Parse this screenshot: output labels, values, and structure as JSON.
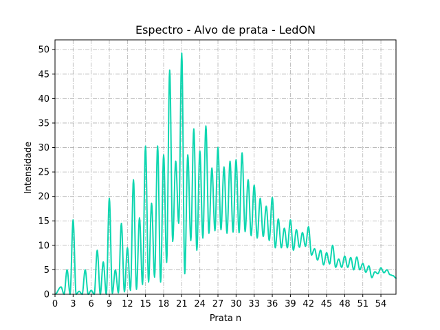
{
  "chart_data": {
    "type": "line",
    "title": "Espectro - Alvo de prata - LedON",
    "xlabel": "Prata n",
    "ylabel": "Intensidade",
    "xlim": [
      0,
      56.5
    ],
    "ylim": [
      0,
      52
    ],
    "xticks": [
      0,
      3,
      6,
      9,
      12,
      15,
      18,
      21,
      24,
      27,
      30,
      33,
      36,
      39,
      42,
      45,
      48,
      51,
      54
    ],
    "yticks": [
      0,
      5,
      10,
      15,
      20,
      25,
      30,
      35,
      40,
      45,
      50
    ],
    "grid": true,
    "grid_style": "dashdot",
    "line_color": "#0fd6b0",
    "grid_color": "#b0b0b0",
    "peaks": [
      {
        "x": 1.0,
        "y": 1.5
      },
      {
        "x": 2.0,
        "y": 5.0
      },
      {
        "x": 3.0,
        "y": 15.2
      },
      {
        "x": 4.0,
        "y": 0.6
      },
      {
        "x": 5.0,
        "y": 5.0
      },
      {
        "x": 6.0,
        "y": 0.8
      },
      {
        "x": 7.0,
        "y": 9.0
      },
      {
        "x": 8.0,
        "y": 6.6
      },
      {
        "x": 9.0,
        "y": 19.6
      },
      {
        "x": 10.0,
        "y": 5.0
      },
      {
        "x": 11.0,
        "y": 14.5
      },
      {
        "x": 12.0,
        "y": 9.5
      },
      {
        "x": 13.0,
        "y": 23.4
      },
      {
        "x": 14.0,
        "y": 15.6
      },
      {
        "x": 15.0,
        "y": 30.3
      },
      {
        "x": 16.0,
        "y": 18.6
      },
      {
        "x": 17.0,
        "y": 30.3
      },
      {
        "x": 18.0,
        "y": 28.5
      },
      {
        "x": 19.0,
        "y": 45.8
      },
      {
        "x": 20.0,
        "y": 27.2
      },
      {
        "x": 21.0,
        "y": 49.3
      },
      {
        "x": 22.0,
        "y": 28.5
      },
      {
        "x": 23.0,
        "y": 33.8
      },
      {
        "x": 24.0,
        "y": 29.3
      },
      {
        "x": 25.0,
        "y": 34.4
      },
      {
        "x": 26.0,
        "y": 25.8
      },
      {
        "x": 27.0,
        "y": 30.0
      },
      {
        "x": 28.0,
        "y": 26.0
      },
      {
        "x": 29.0,
        "y": 27.2
      },
      {
        "x": 30.0,
        "y": 27.5
      },
      {
        "x": 31.0,
        "y": 28.9
      },
      {
        "x": 32.0,
        "y": 23.4
      },
      {
        "x": 33.0,
        "y": 22.3
      },
      {
        "x": 34.0,
        "y": 19.6
      },
      {
        "x": 35.0,
        "y": 18.0
      },
      {
        "x": 36.0,
        "y": 19.8
      },
      {
        "x": 37.0,
        "y": 15.4
      },
      {
        "x": 38.0,
        "y": 13.5
      },
      {
        "x": 39.0,
        "y": 15.2
      },
      {
        "x": 40.0,
        "y": 13.2
      },
      {
        "x": 41.0,
        "y": 12.6
      },
      {
        "x": 42.0,
        "y": 13.8
      },
      {
        "x": 43.0,
        "y": 9.3
      },
      {
        "x": 44.0,
        "y": 9.0
      },
      {
        "x": 45.0,
        "y": 8.5
      },
      {
        "x": 46.0,
        "y": 10.0
      },
      {
        "x": 47.0,
        "y": 7.2
      },
      {
        "x": 48.0,
        "y": 7.8
      },
      {
        "x": 49.0,
        "y": 7.5
      },
      {
        "x": 50.0,
        "y": 7.6
      },
      {
        "x": 51.0,
        "y": 6.3
      },
      {
        "x": 52.0,
        "y": 5.8
      },
      {
        "x": 53.0,
        "y": 4.6
      },
      {
        "x": 54.0,
        "y": 5.4
      },
      {
        "x": 55.0,
        "y": 5.0
      },
      {
        "x": 56.0,
        "y": 3.8
      }
    ],
    "troughs": [
      {
        "x": 0.0,
        "y": 0.0
      },
      {
        "x": 1.5,
        "y": 0.0
      },
      {
        "x": 2.5,
        "y": 0.0
      },
      {
        "x": 3.5,
        "y": 0.0
      },
      {
        "x": 4.5,
        "y": 0.0
      },
      {
        "x": 5.5,
        "y": 0.0
      },
      {
        "x": 6.5,
        "y": 0.0
      },
      {
        "x": 7.5,
        "y": 0.0
      },
      {
        "x": 8.5,
        "y": 0.0
      },
      {
        "x": 9.5,
        "y": 0.2
      },
      {
        "x": 10.5,
        "y": 0.3
      },
      {
        "x": 11.5,
        "y": 0.5
      },
      {
        "x": 12.5,
        "y": 0.8
      },
      {
        "x": 13.5,
        "y": 1.0
      },
      {
        "x": 14.5,
        "y": 2.0
      },
      {
        "x": 15.5,
        "y": 2.5
      },
      {
        "x": 16.5,
        "y": 3.5
      },
      {
        "x": 17.5,
        "y": 2.5
      },
      {
        "x": 18.5,
        "y": 6.5
      },
      {
        "x": 19.5,
        "y": 10.8
      },
      {
        "x": 20.5,
        "y": 14.5
      },
      {
        "x": 21.5,
        "y": 4.2
      },
      {
        "x": 22.5,
        "y": 11.0
      },
      {
        "x": 23.5,
        "y": 9.0
      },
      {
        "x": 24.5,
        "y": 11.5
      },
      {
        "x": 25.5,
        "y": 12.5
      },
      {
        "x": 26.5,
        "y": 13.0
      },
      {
        "x": 27.5,
        "y": 13.2
      },
      {
        "x": 28.5,
        "y": 12.5
      },
      {
        "x": 29.5,
        "y": 12.7
      },
      {
        "x": 30.5,
        "y": 12.6
      },
      {
        "x": 31.5,
        "y": 12.8
      },
      {
        "x": 32.5,
        "y": 12.0
      },
      {
        "x": 33.5,
        "y": 11.5
      },
      {
        "x": 34.5,
        "y": 11.8
      },
      {
        "x": 35.5,
        "y": 11.0
      },
      {
        "x": 36.5,
        "y": 9.5
      },
      {
        "x": 37.5,
        "y": 9.5
      },
      {
        "x": 38.5,
        "y": 9.5
      },
      {
        "x": 39.5,
        "y": 9.0
      },
      {
        "x": 40.5,
        "y": 9.6
      },
      {
        "x": 41.5,
        "y": 9.8
      },
      {
        "x": 42.5,
        "y": 8.0
      },
      {
        "x": 43.5,
        "y": 7.0
      },
      {
        "x": 44.5,
        "y": 6.0
      },
      {
        "x": 45.5,
        "y": 6.2
      },
      {
        "x": 46.5,
        "y": 5.5
      },
      {
        "x": 47.5,
        "y": 5.5
      },
      {
        "x": 48.5,
        "y": 5.5
      },
      {
        "x": 49.5,
        "y": 5.0
      },
      {
        "x": 50.5,
        "y": 5.0
      },
      {
        "x": 51.5,
        "y": 4.5
      },
      {
        "x": 52.5,
        "y": 3.4
      },
      {
        "x": 53.5,
        "y": 4.2
      },
      {
        "x": 54.5,
        "y": 4.4
      },
      {
        "x": 55.5,
        "y": 4.0
      },
      {
        "x": 56.5,
        "y": 3.3
      }
    ]
  }
}
